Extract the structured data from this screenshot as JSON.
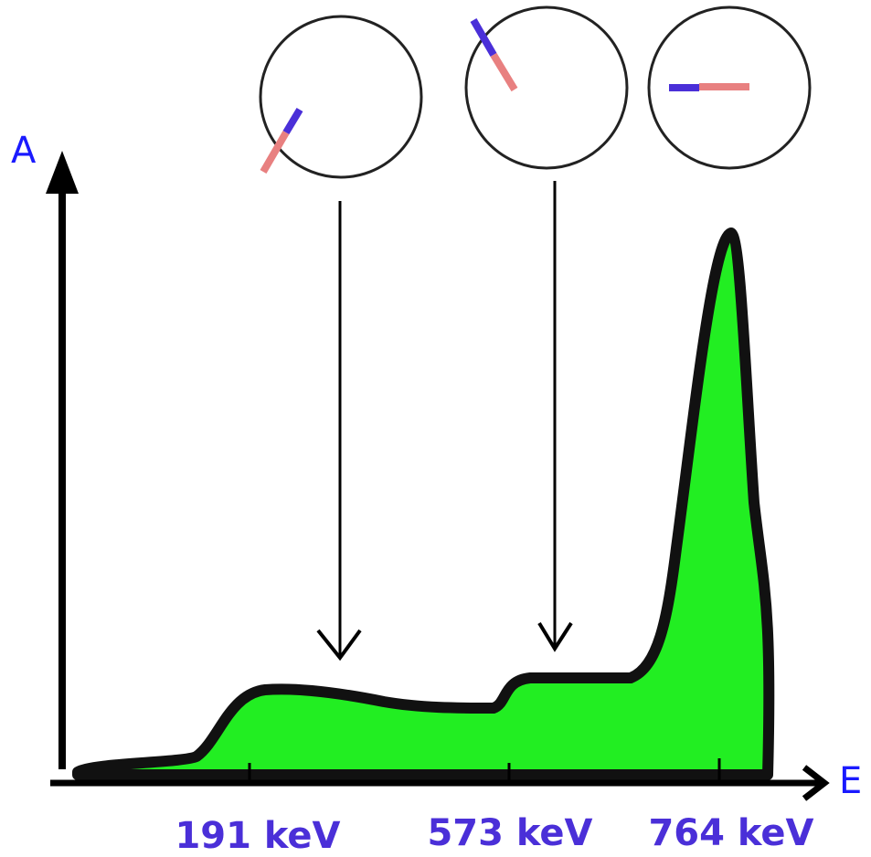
{
  "axes": {
    "y_label": "A",
    "x_label": "E"
  },
  "ticks": [
    "191 keV",
    "573 keV",
    "764 keV"
  ]
}
